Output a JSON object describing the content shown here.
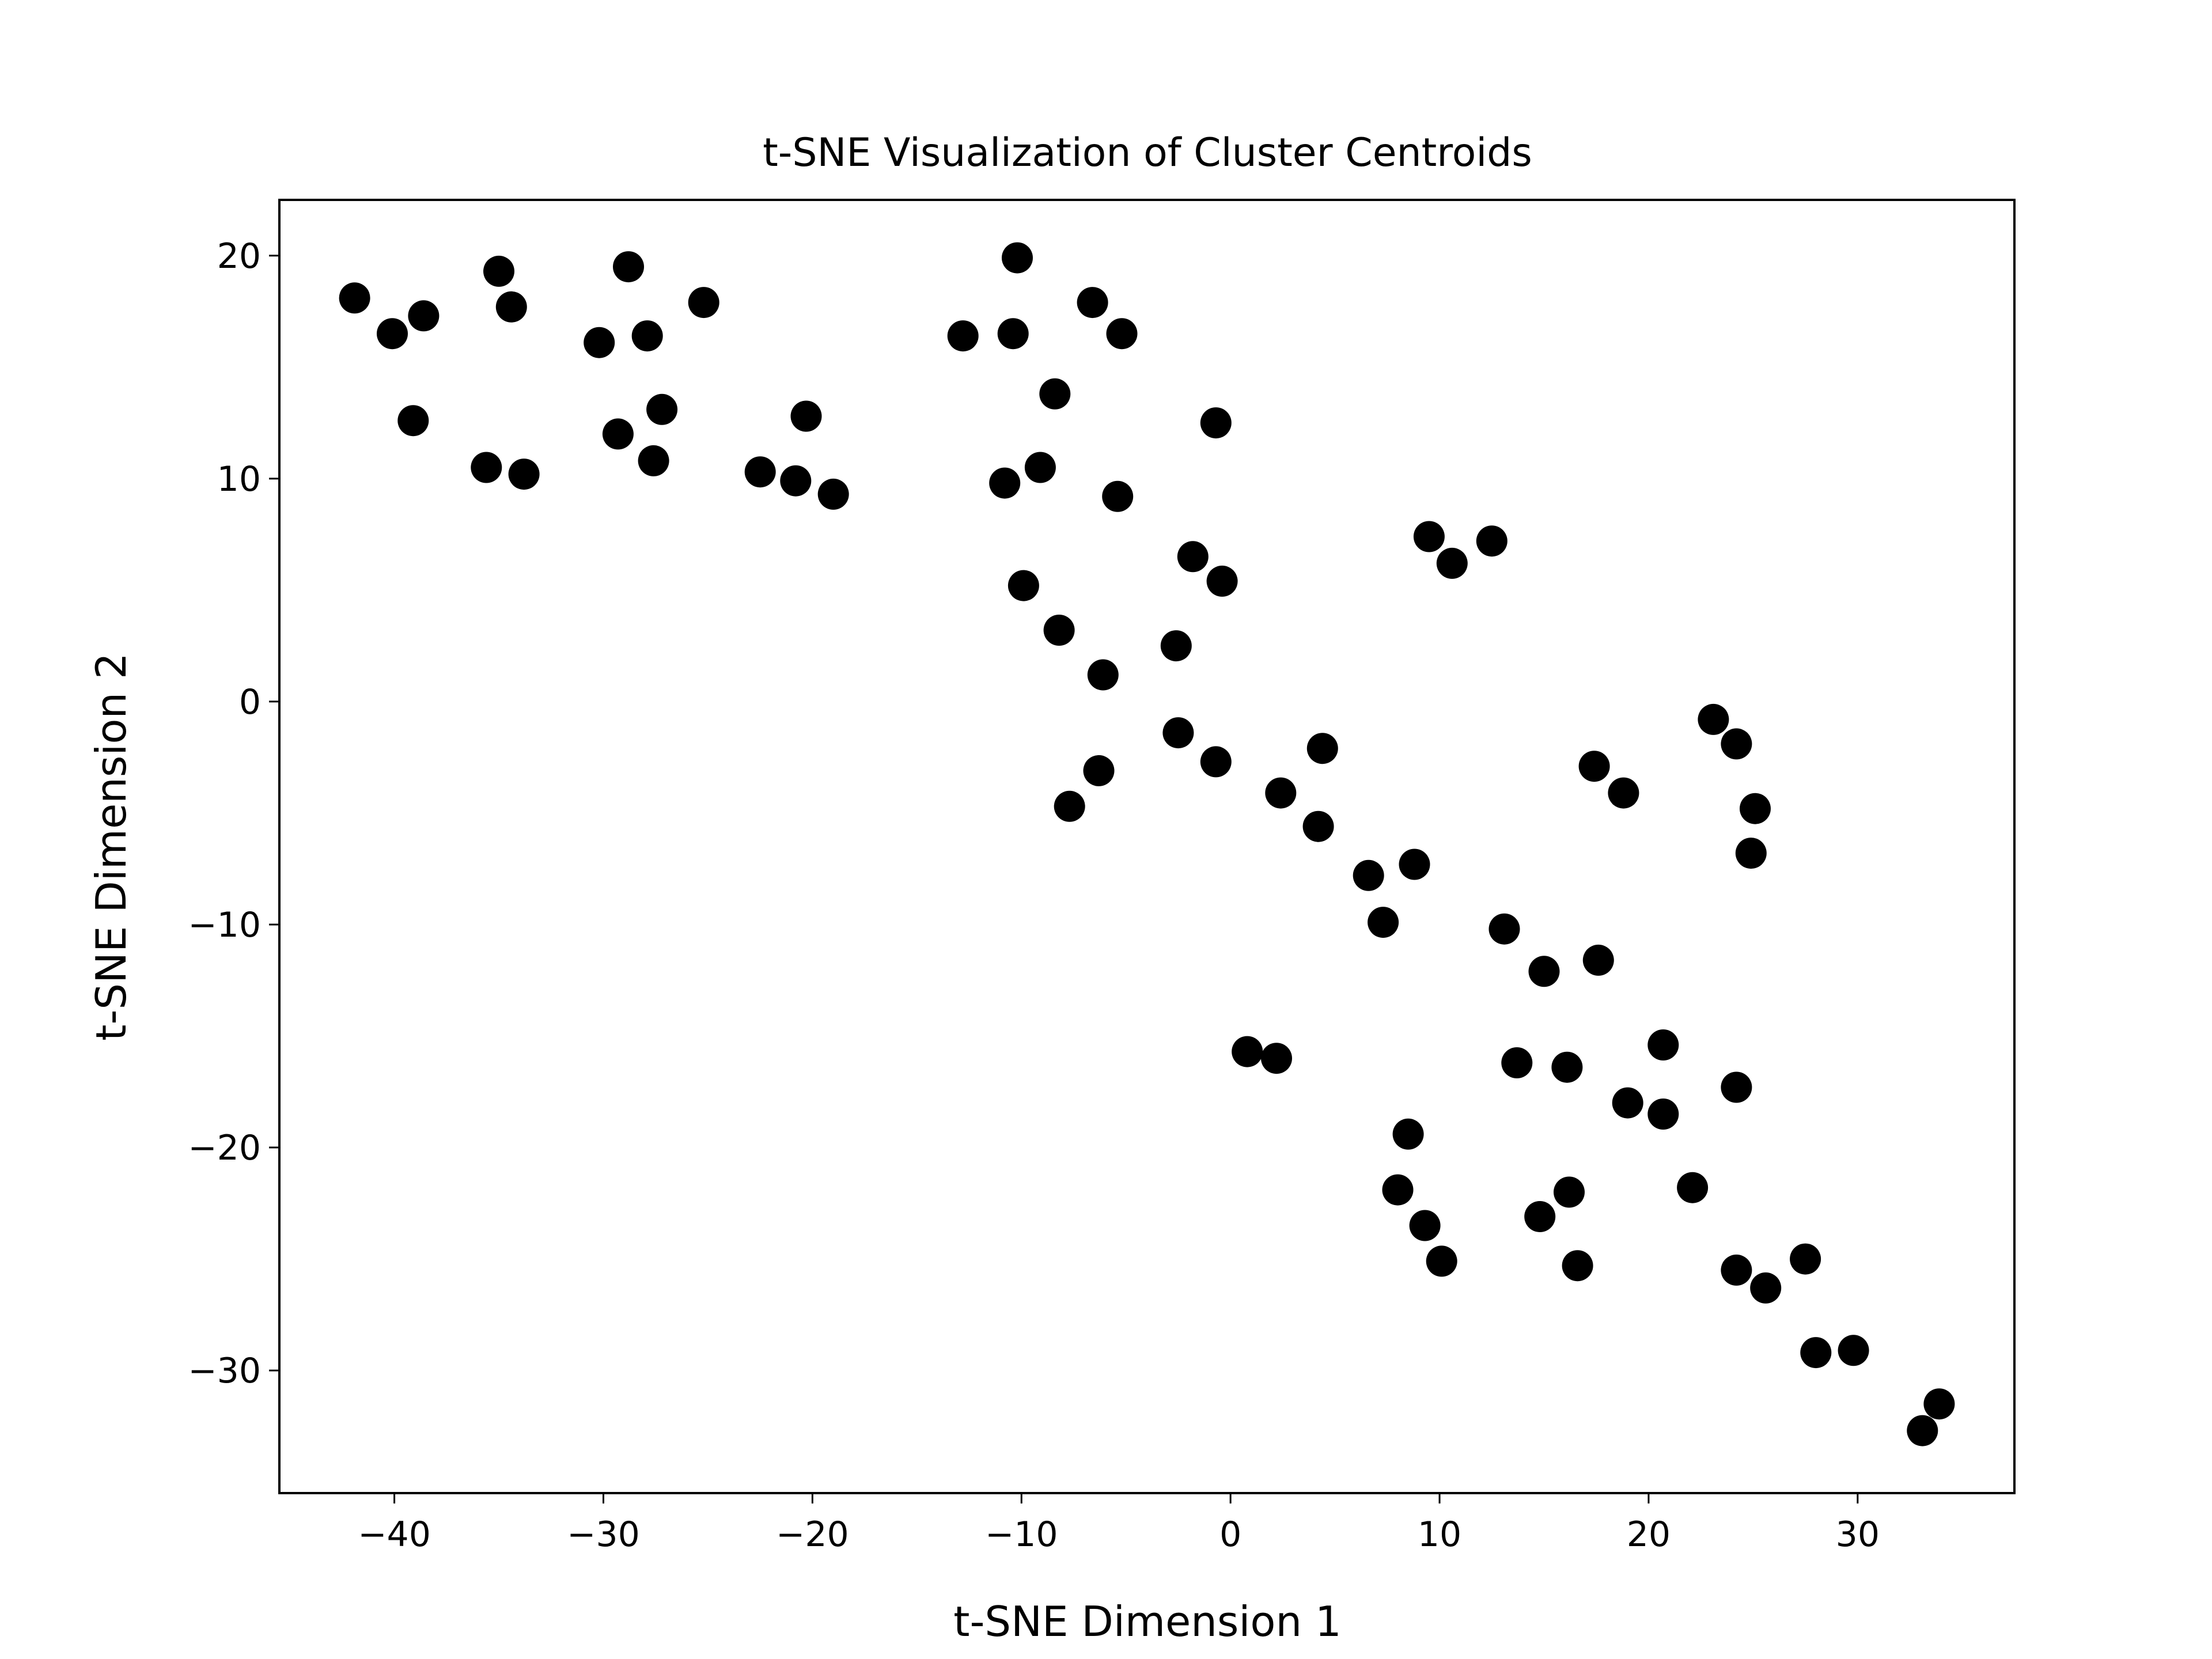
{
  "chart_data": {
    "type": "scatter",
    "title": "t-SNE Visualization of Cluster Centroids",
    "xlabel": "t-SNE Dimension 1",
    "ylabel": "t-SNE Dimension 2",
    "xlim": [
      -45.5,
      37.5
    ],
    "ylim": [
      -35.5,
      22.5
    ],
    "xticks": [
      -40,
      -30,
      -20,
      -10,
      0,
      10,
      20,
      30
    ],
    "yticks": [
      -30,
      -20,
      -10,
      0,
      10,
      20
    ],
    "xtick_labels": [
      "−40",
      "−30",
      "−20",
      "−10",
      "0",
      "10",
      "20",
      "30"
    ],
    "ytick_labels": [
      "−30",
      "−20",
      "−10",
      "0",
      "10",
      "20"
    ],
    "grid": false,
    "marker_color": "#000000",
    "points": [
      [
        -41.9,
        18.1
      ],
      [
        -40.1,
        16.5
      ],
      [
        -38.6,
        17.3
      ],
      [
        -39.1,
        12.6
      ],
      [
        -35.0,
        19.3
      ],
      [
        -34.4,
        17.7
      ],
      [
        -35.6,
        10.5
      ],
      [
        -33.8,
        10.2
      ],
      [
        -30.2,
        16.1
      ],
      [
        -28.8,
        19.5
      ],
      [
        -27.9,
        16.4
      ],
      [
        -29.3,
        12.0
      ],
      [
        -27.2,
        13.1
      ],
      [
        -27.6,
        10.8
      ],
      [
        -25.2,
        17.9
      ],
      [
        -22.5,
        10.3
      ],
      [
        -20.3,
        12.8
      ],
      [
        -20.8,
        9.9
      ],
      [
        -19.0,
        9.3
      ],
      [
        -12.8,
        16.4
      ],
      [
        -10.2,
        19.9
      ],
      [
        -10.4,
        16.5
      ],
      [
        -6.6,
        17.9
      ],
      [
        -5.2,
        16.5
      ],
      [
        -8.4,
        13.8
      ],
      [
        -10.8,
        9.8
      ],
      [
        -9.1,
        10.5
      ],
      [
        -5.4,
        9.2
      ],
      [
        -0.7,
        12.5
      ],
      [
        -1.8,
        6.5
      ],
      [
        -0.4,
        5.4
      ],
      [
        -9.9,
        5.2
      ],
      [
        -8.2,
        3.2
      ],
      [
        -6.1,
        1.2
      ],
      [
        -2.6,
        2.5
      ],
      [
        -2.5,
        -1.4
      ],
      [
        -0.7,
        -2.7
      ],
      [
        -6.3,
        -3.1
      ],
      [
        -7.7,
        -4.7
      ],
      [
        2.4,
        -4.1
      ],
      [
        4.4,
        -2.1
      ],
      [
        4.2,
        -5.6
      ],
      [
        6.6,
        -7.8
      ],
      [
        8.8,
        -7.3
      ],
      [
        7.3,
        -9.9
      ],
      [
        9.5,
        7.4
      ],
      [
        10.6,
        6.2
      ],
      [
        12.5,
        7.2
      ],
      [
        0.8,
        -15.7
      ],
      [
        2.2,
        -16.0
      ],
      [
        13.1,
        -10.2
      ],
      [
        15.0,
        -12.1
      ],
      [
        17.6,
        -11.6
      ],
      [
        13.7,
        -16.2
      ],
      [
        16.1,
        -16.4
      ],
      [
        20.7,
        -15.4
      ],
      [
        24.2,
        -17.3
      ],
      [
        19.0,
        -18.0
      ],
      [
        20.7,
        -18.5
      ],
      [
        17.4,
        -2.9
      ],
      [
        18.8,
        -4.1
      ],
      [
        23.1,
        -0.8
      ],
      [
        24.2,
        -1.9
      ],
      [
        25.1,
        -4.8
      ],
      [
        24.9,
        -6.8
      ],
      [
        8.5,
        -19.4
      ],
      [
        8.0,
        -21.9
      ],
      [
        9.3,
        -23.5
      ],
      [
        10.1,
        -25.1
      ],
      [
        14.8,
        -23.1
      ],
      [
        16.2,
        -22.0
      ],
      [
        16.6,
        -25.3
      ],
      [
        22.1,
        -21.8
      ],
      [
        24.2,
        -25.5
      ],
      [
        25.6,
        -26.3
      ],
      [
        27.5,
        -25.0
      ],
      [
        28.0,
        -29.2
      ],
      [
        29.8,
        -29.1
      ],
      [
        33.1,
        -32.7
      ],
      [
        33.9,
        -31.5
      ]
    ]
  }
}
